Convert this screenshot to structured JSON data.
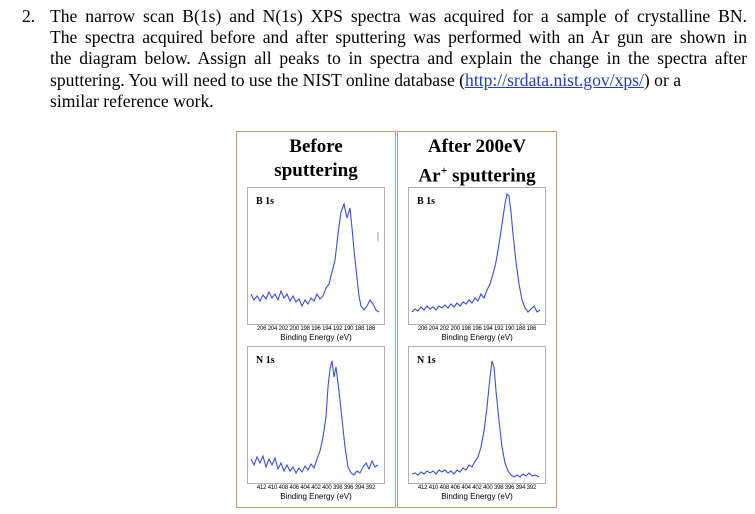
{
  "question": {
    "number": "2.",
    "lines": [
      "The narrow scan B(1s) and N(1s) XPS spectra was acquired for a sample of crystalline BN.",
      "The spectra acquired before and after sputtering was performed with an Ar gun are shown in",
      "the diagram below. Assign all peaks to in spectra and explain the change in the spectra after"
    ],
    "line4_before": "sputtering. You will need to use the NIST online database (",
    "link": "http://srdata.nist.gov/xps/",
    "line4_after": ") or a",
    "line5": "similar reference work."
  },
  "panels": [
    {
      "title_line1": "Before",
      "title_line2": "sputtering",
      "plots": [
        {
          "label": "B 1s",
          "ticks": "206 204 202 200 198 196 194 192 190 188 186",
          "xlabel": "Binding Energy (eV)"
        },
        {
          "label": "N 1s",
          "ticks": "412 410 408 406 404 402 400 398 396 394 392",
          "xlabel": "Binding Energy (eV)"
        }
      ]
    },
    {
      "title_line1": "After 200eV",
      "title_line2_main": "Ar",
      "title_line2_sup": "+",
      "title_line2_rest": " sputtering",
      "plots": [
        {
          "label": "B 1s",
          "ticks": "206 204 202 200 198 196 194 192 190 188 186",
          "xlabel": "Binding Energy (eV)"
        },
        {
          "label": "N 1s",
          "ticks": "412 410 408 406 404 402 400 398 396 394 392",
          "xlabel": "Binding Energy (eV)"
        }
      ]
    }
  ],
  "colors": {
    "curve": "#3a4fe0",
    "panel_border": "#c69a6a",
    "link": "#1f3fbf"
  }
}
